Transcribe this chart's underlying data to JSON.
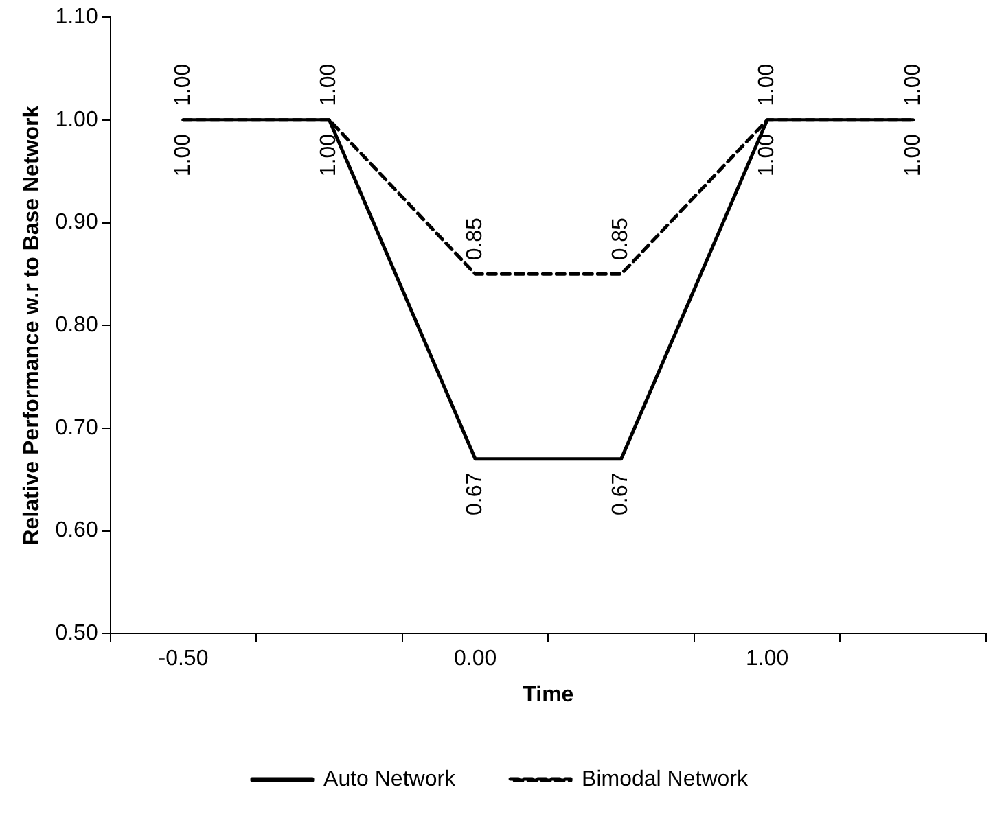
{
  "chart_data": {
    "type": "line",
    "xlabel": "Time",
    "ylabel": "Relative Performance w.r to Base Network",
    "categories": [
      "-0.50",
      null,
      "0.00",
      null,
      "1.00",
      null
    ],
    "series": [
      {
        "name": "Auto Network",
        "color": "#000000",
        "line_style": "solid",
        "values": [
          1.0,
          1.0,
          0.67,
          0.67,
          1.0,
          1.0
        ],
        "value_labels": [
          "1.00",
          "1.00",
          "0.67",
          "0.67",
          "1.00",
          "1.00"
        ]
      },
      {
        "name": "Bimodal Network",
        "color": "#000000",
        "line_style": "dashed",
        "values": [
          1.0,
          1.0,
          0.85,
          0.85,
          1.0,
          1.0
        ],
        "value_labels": [
          "1.00",
          "1.00",
          "0.85",
          "0.85",
          "1.00",
          "1.00"
        ]
      }
    ],
    "ylim": [
      0.5,
      1.1
    ],
    "yticks": [
      {
        "value": 0.5,
        "label": "0.50"
      },
      {
        "value": 0.6,
        "label": "0.60"
      },
      {
        "value": 0.7,
        "label": "0.70"
      },
      {
        "value": 0.8,
        "label": "0.80"
      },
      {
        "value": 0.9,
        "label": "0.90"
      },
      {
        "value": 1.0,
        "label": "1.00"
      },
      {
        "value": 1.1,
        "label": "1.10"
      }
    ],
    "grid": false,
    "legend": "bottom",
    "marker": "none"
  }
}
